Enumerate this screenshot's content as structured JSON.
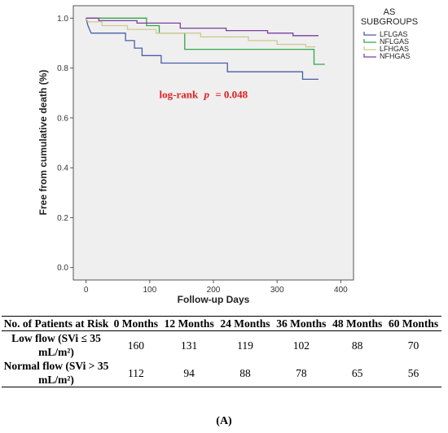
{
  "chart_data": {
    "type": "line",
    "subtype": "kaplan-meier step",
    "title": "",
    "xlabel": "Follow-up Days",
    "ylabel": "Free from cumulative death (%)",
    "xlim": [
      -20,
      420
    ],
    "ylim": [
      -0.05,
      1.05
    ],
    "xticks": [
      0,
      100,
      200,
      300,
      400
    ],
    "yticks": [
      0.0,
      0.2,
      0.4,
      0.6,
      0.8,
      1.0
    ],
    "ytick_labels": [
      "0.0",
      "0.2",
      "0.4",
      "0.6",
      "0.8",
      "1.0"
    ],
    "grid": false,
    "plot_background": "#efefef",
    "annotation": {
      "text_prefix": "log-rank",
      "p_symbol": "p",
      "text_suffix": "= 0.048",
      "x": 115,
      "y": 0.68,
      "color": "#e02020"
    },
    "legend": {
      "title_line1": "AS",
      "title_line2": "SUBGROUPS",
      "position": "right",
      "entries": [
        "LFLGAS",
        "NFLGAS",
        "LFHGAS",
        "NFHGAS"
      ]
    },
    "series": [
      {
        "name": "LFLGAS",
        "color": "#4a5ea8",
        "points": [
          [
            0,
            1.0
          ],
          [
            3,
            0.97
          ],
          [
            8,
            0.94
          ],
          [
            62,
            0.94
          ],
          [
            62,
            0.91
          ],
          [
            76,
            0.91
          ],
          [
            76,
            0.88
          ],
          [
            88,
            0.88
          ],
          [
            88,
            0.85
          ],
          [
            118,
            0.85
          ],
          [
            118,
            0.82
          ],
          [
            222,
            0.82
          ],
          [
            222,
            0.785
          ],
          [
            340,
            0.785
          ],
          [
            340,
            0.755
          ],
          [
            365,
            0.755
          ]
        ]
      },
      {
        "name": "NFLGAS",
        "color": "#2fa84a",
        "points": [
          [
            0,
            1.0
          ],
          [
            95,
            1.0
          ],
          [
            95,
            0.97
          ],
          [
            115,
            0.97
          ],
          [
            115,
            0.94
          ],
          [
            155,
            0.94
          ],
          [
            155,
            0.875
          ],
          [
            358,
            0.875
          ],
          [
            358,
            0.815
          ],
          [
            375,
            0.815
          ]
        ]
      },
      {
        "name": "LFHGAS",
        "color": "#cfc98e",
        "points": [
          [
            0,
            1.0
          ],
          [
            3,
            0.985
          ],
          [
            25,
            0.985
          ],
          [
            25,
            0.97
          ],
          [
            65,
            0.97
          ],
          [
            65,
            0.955
          ],
          [
            110,
            0.955
          ],
          [
            110,
            0.94
          ],
          [
            180,
            0.94
          ],
          [
            180,
            0.925
          ],
          [
            255,
            0.925
          ],
          [
            255,
            0.91
          ],
          [
            300,
            0.91
          ],
          [
            300,
            0.895
          ],
          [
            345,
            0.895
          ],
          [
            345,
            0.885
          ],
          [
            360,
            0.885
          ]
        ]
      },
      {
        "name": "NFHGAS",
        "color": "#7a3fa0",
        "points": [
          [
            0,
            1.0
          ],
          [
            20,
            1.0
          ],
          [
            20,
            0.99
          ],
          [
            80,
            0.99
          ],
          [
            80,
            0.98
          ],
          [
            148,
            0.98
          ],
          [
            148,
            0.96
          ],
          [
            220,
            0.96
          ],
          [
            220,
            0.95
          ],
          [
            285,
            0.95
          ],
          [
            285,
            0.94
          ],
          [
            325,
            0.94
          ],
          [
            325,
            0.93
          ],
          [
            365,
            0.93
          ]
        ]
      }
    ]
  },
  "risk_table": {
    "header": {
      "label": "No. of Patients at Risk",
      "columns": [
        "0 Months",
        "12 Months",
        "24 Months",
        "36 Months",
        "48 Months",
        "60 Months"
      ]
    },
    "rows": [
      {
        "label": "Low flow (SVi ≤ 35 mL/m²)",
        "values": [
          "160",
          "131",
          "119",
          "102",
          "88",
          "70"
        ]
      },
      {
        "label": "Normal flow (SVi > 35 mL/m²)",
        "values": [
          "112",
          "94",
          "88",
          "78",
          "65",
          "56"
        ]
      }
    ]
  },
  "panel_label": "(A)"
}
